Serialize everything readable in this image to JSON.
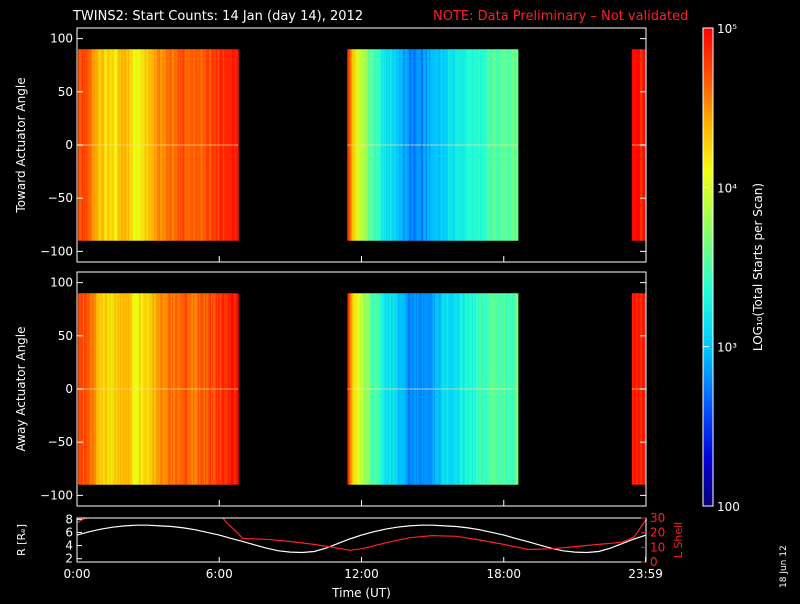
{
  "title": {
    "main": "TWINS2: Start Counts: 14 Jan (day  14), 2012",
    "note": "NOTE: Data Preliminary – Not validated"
  },
  "colors": {
    "background": "#000000",
    "axes": "#ffffff",
    "note": "#ff2020",
    "r_line": "#ffffff",
    "l_shell_line": "#ff2020"
  },
  "datestamp": "18 Jun 12",
  "chart_data": [
    {
      "type": "heatmap",
      "name": "toward-panel",
      "ylabel": "Toward Actuator Angle",
      "ylim": [
        -110,
        110
      ],
      "yticks": [
        100,
        50,
        0,
        -50,
        -100
      ],
      "ytick_labels": [
        "100",
        "50",
        "0",
        "−50",
        "−100"
      ],
      "xlim": [
        0,
        24
      ],
      "angle_range": [
        -90,
        90
      ],
      "data_intervals_hours": [
        [
          0.05,
          6.8
        ],
        [
          11.4,
          18.6
        ],
        [
          23.4,
          24.0
        ]
      ],
      "log10_counts_profile": {
        "hours": [
          0.0,
          0.5,
          1.0,
          1.5,
          2.0,
          2.5,
          3.0,
          3.5,
          4.0,
          4.5,
          5.0,
          5.5,
          6.0,
          6.5,
          11.4,
          11.6,
          12.0,
          12.5,
          13.0,
          13.5,
          14.0,
          14.5,
          15.0,
          15.5,
          16.0,
          16.5,
          17.0,
          17.5,
          18.0,
          18.6,
          23.4,
          24.0
        ],
        "log10": [
          4.8,
          4.6,
          4.3,
          4.2,
          4.4,
          4.1,
          4.3,
          4.5,
          4.6,
          4.7,
          4.6,
          4.7,
          4.8,
          4.9,
          4.9,
          4.3,
          3.9,
          3.5,
          3.2,
          3.0,
          2.8,
          2.8,
          2.9,
          3.1,
          3.2,
          3.3,
          3.4,
          3.5,
          3.5,
          3.6,
          4.9,
          4.9
        ]
      }
    },
    {
      "type": "heatmap",
      "name": "away-panel",
      "ylabel": "Away Actuator Angle",
      "ylim": [
        -110,
        110
      ],
      "yticks": [
        100,
        50,
        0,
        -50,
        -100
      ],
      "ytick_labels": [
        "100",
        "50",
        "0",
        "−50",
        "−100"
      ],
      "xlim": [
        0,
        24
      ],
      "angle_range": [
        -90,
        90
      ],
      "data_intervals_hours": [
        [
          0.05,
          6.8
        ],
        [
          11.4,
          18.6
        ],
        [
          23.4,
          24.0
        ]
      ],
      "log10_counts_profile": {
        "hours": [
          0.0,
          0.5,
          1.0,
          1.5,
          2.0,
          2.5,
          3.0,
          3.5,
          4.0,
          4.5,
          5.0,
          5.5,
          6.0,
          6.5,
          11.4,
          11.6,
          12.0,
          12.5,
          13.0,
          13.5,
          14.0,
          14.5,
          15.0,
          15.5,
          16.0,
          16.5,
          17.0,
          17.5,
          18.0,
          18.6,
          23.4,
          24.0
        ],
        "log10": [
          4.8,
          4.6,
          4.3,
          4.2,
          4.4,
          4.1,
          4.3,
          4.5,
          4.6,
          4.7,
          4.6,
          4.7,
          4.8,
          4.9,
          4.9,
          4.3,
          3.9,
          3.5,
          3.2,
          3.0,
          2.8,
          2.8,
          2.9,
          3.1,
          3.2,
          3.3,
          3.4,
          3.5,
          3.5,
          3.6,
          4.9,
          4.9
        ]
      }
    },
    {
      "type": "line",
      "name": "orbit-panel",
      "xlabel": "Time (UT)",
      "xlim": [
        0,
        24
      ],
      "xticks": [
        0,
        6,
        12,
        18,
        23.983
      ],
      "xtick_labels": [
        "0:00",
        "6:00",
        "12:00",
        "18:00",
        "23:59"
      ],
      "y_left": {
        "label": "R [Rₑ]",
        "ylim": [
          1.5,
          8.2
        ],
        "ticks": [
          2,
          4,
          6,
          8
        ],
        "tick_labels": [
          "2",
          "4",
          "6",
          "8"
        ]
      },
      "y_right": {
        "label": "L Shell",
        "ylim": [
          0,
          30
        ],
        "ticks": [
          0,
          10,
          20,
          30
        ],
        "tick_labels": [
          "0",
          "10",
          "20",
          "30"
        ]
      },
      "series": [
        {
          "name": "R [Rₑ]",
          "axis": "left",
          "color": "#ffffff",
          "x": [
            0,
            0.5,
            1,
            1.5,
            2,
            2.5,
            3,
            3.5,
            4,
            4.5,
            5,
            5.5,
            6,
            6.5,
            7,
            7.5,
            8,
            8.5,
            9,
            9.5,
            10,
            10.5,
            11,
            11.5,
            12,
            12.5,
            13,
            13.5,
            14,
            14.5,
            15,
            15.5,
            16,
            16.5,
            17,
            17.5,
            18,
            18.5,
            19,
            19.5,
            20,
            20.5,
            21,
            21.5,
            22,
            22.5,
            23,
            23.5,
            24
          ],
          "y": [
            5.6,
            6.1,
            6.5,
            6.8,
            7.0,
            7.1,
            7.1,
            7.0,
            6.9,
            6.7,
            6.4,
            6.0,
            5.6,
            5.1,
            4.6,
            4.1,
            3.6,
            3.2,
            3.0,
            2.95,
            3.1,
            3.6,
            4.3,
            5.0,
            5.6,
            6.1,
            6.5,
            6.8,
            7.0,
            7.1,
            7.1,
            7.0,
            6.9,
            6.7,
            6.4,
            6.0,
            5.6,
            5.1,
            4.6,
            4.1,
            3.6,
            3.2,
            3.0,
            2.95,
            3.1,
            3.6,
            4.3,
            5.0,
            5.6
          ]
        },
        {
          "name": "L Shell",
          "axis": "right",
          "color": "#ff2020",
          "x": [
            0,
            0.5,
            1.0,
            6.0,
            6.3,
            6.7,
            7.0,
            8.0,
            9.0,
            10.0,
            11.0,
            11.5,
            12.0,
            13.0,
            14.0,
            15.0,
            16.0,
            17.0,
            18.0,
            18.6,
            19.0,
            20.0,
            21.0,
            22.0,
            23.0,
            23.5,
            24.0
          ],
          "y": [
            27,
            31,
            33,
            33,
            27,
            21,
            16,
            15.5,
            14,
            12,
            9.5,
            8,
            9,
            13,
            16.5,
            18,
            17.5,
            15,
            12,
            10,
            8.5,
            9,
            10.5,
            12,
            13.5,
            17,
            29
          ]
        }
      ]
    },
    {
      "type": "colorbar",
      "name": "colorbar",
      "label": "LOG₁₀(Total Starts per Scan)",
      "range_log10": [
        2,
        5
      ],
      "ticks": [
        5,
        4,
        3,
        2
      ],
      "tick_labels": [
        "10⁵",
        "10⁴",
        "10³",
        "100"
      ]
    }
  ]
}
